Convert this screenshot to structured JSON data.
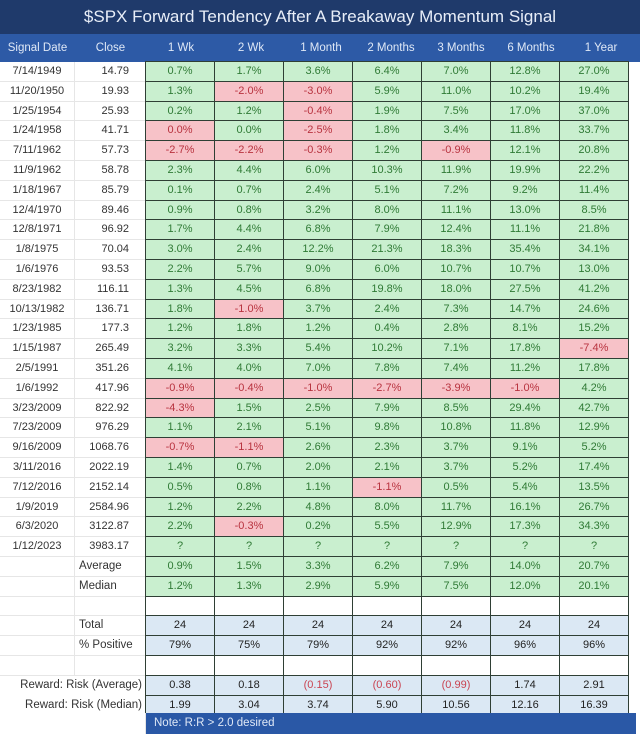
{
  "title": "$SPX Forward Tendency After A Breakaway Momentum Signal",
  "columns": [
    "Signal Date",
    "Close",
    "1 Wk",
    "2 Wk",
    "1 Month",
    "2 Months",
    "3 Months",
    "6 Months",
    "1 Year"
  ],
  "colors": {
    "title_bg": "#1f3a6b",
    "header_bg": "#2d5aa6",
    "positive_bg": "#c9efcf",
    "positive_text": "#2f7a35",
    "negative_bg": "#f7c2c8",
    "negative_text": "#b8333f",
    "summary_bg": "#dbe8f4",
    "note_bg": "#2a58a6"
  },
  "rows": [
    {
      "date": "7/14/1949",
      "close": "14.79",
      "values": [
        "0.7%",
        "1.7%",
        "3.6%",
        "6.4%",
        "7.0%",
        "12.8%",
        "27.0%"
      ]
    },
    {
      "date": "11/20/1950",
      "close": "19.93",
      "values": [
        "1.3%",
        "-2.0%",
        "-3.0%",
        "5.9%",
        "11.0%",
        "10.2%",
        "19.4%"
      ]
    },
    {
      "date": "1/25/1954",
      "close": "25.93",
      "values": [
        "0.2%",
        "1.2%",
        "-0.4%",
        "1.9%",
        "7.5%",
        "17.0%",
        "37.0%"
      ]
    },
    {
      "date": "1/24/1958",
      "close": "41.71",
      "values": [
        "0.0%",
        "0.0%",
        "-2.5%",
        "1.8%",
        "3.4%",
        "11.8%",
        "33.7%"
      ],
      "neg_override": [
        true,
        false,
        true,
        false,
        false,
        false,
        false
      ]
    },
    {
      "date": "7/11/1962",
      "close": "57.73",
      "values": [
        "-2.7%",
        "-2.2%",
        "-0.3%",
        "1.2%",
        "-0.9%",
        "12.1%",
        "20.8%"
      ]
    },
    {
      "date": "11/9/1962",
      "close": "58.78",
      "values": [
        "2.3%",
        "4.4%",
        "6.0%",
        "10.3%",
        "11.9%",
        "19.9%",
        "22.2%"
      ]
    },
    {
      "date": "1/18/1967",
      "close": "85.79",
      "values": [
        "0.1%",
        "0.7%",
        "2.4%",
        "5.1%",
        "7.2%",
        "9.2%",
        "11.4%"
      ]
    },
    {
      "date": "12/4/1970",
      "close": "89.46",
      "values": [
        "0.9%",
        "0.8%",
        "3.2%",
        "8.0%",
        "11.1%",
        "13.0%",
        "8.5%"
      ]
    },
    {
      "date": "12/8/1971",
      "close": "96.92",
      "values": [
        "1.7%",
        "4.4%",
        "6.8%",
        "7.9%",
        "12.4%",
        "11.1%",
        "21.8%"
      ]
    },
    {
      "date": "1/8/1975",
      "close": "70.04",
      "values": [
        "3.0%",
        "2.4%",
        "12.2%",
        "21.3%",
        "18.3%",
        "35.4%",
        "34.1%"
      ]
    },
    {
      "date": "1/6/1976",
      "close": "93.53",
      "values": [
        "2.2%",
        "5.7%",
        "9.0%",
        "6.0%",
        "10.7%",
        "10.7%",
        "13.0%"
      ]
    },
    {
      "date": "8/23/1982",
      "close": "116.11",
      "values": [
        "1.3%",
        "4.5%",
        "6.8%",
        "19.8%",
        "18.0%",
        "27.5%",
        "41.2%"
      ]
    },
    {
      "date": "10/13/1982",
      "close": "136.71",
      "values": [
        "1.8%",
        "-1.0%",
        "3.7%",
        "2.4%",
        "7.3%",
        "14.7%",
        "24.6%"
      ]
    },
    {
      "date": "1/23/1985",
      "close": "177.3",
      "values": [
        "1.2%",
        "1.8%",
        "1.2%",
        "0.4%",
        "2.8%",
        "8.1%",
        "15.2%"
      ]
    },
    {
      "date": "1/15/1987",
      "close": "265.49",
      "values": [
        "3.2%",
        "3.3%",
        "5.4%",
        "10.2%",
        "7.1%",
        "17.8%",
        "-7.4%"
      ]
    },
    {
      "date": "2/5/1991",
      "close": "351.26",
      "values": [
        "4.1%",
        "4.0%",
        "7.0%",
        "7.8%",
        "7.4%",
        "11.2%",
        "17.8%"
      ]
    },
    {
      "date": "1/6/1992",
      "close": "417.96",
      "values": [
        "-0.9%",
        "-0.4%",
        "-1.0%",
        "-2.7%",
        "-3.9%",
        "-1.0%",
        "4.2%"
      ]
    },
    {
      "date": "3/23/2009",
      "close": "822.92",
      "values": [
        "-4.3%",
        "1.5%",
        "2.5%",
        "7.9%",
        "8.5%",
        "29.4%",
        "42.7%"
      ]
    },
    {
      "date": "7/23/2009",
      "close": "976.29",
      "values": [
        "1.1%",
        "2.1%",
        "5.1%",
        "9.8%",
        "10.8%",
        "11.8%",
        "12.9%"
      ]
    },
    {
      "date": "9/16/2009",
      "close": "1068.76",
      "values": [
        "-0.7%",
        "-1.1%",
        "2.6%",
        "2.3%",
        "3.7%",
        "9.1%",
        "5.2%"
      ]
    },
    {
      "date": "3/11/2016",
      "close": "2022.19",
      "values": [
        "1.4%",
        "0.7%",
        "2.0%",
        "2.1%",
        "3.7%",
        "5.2%",
        "17.4%"
      ]
    },
    {
      "date": "7/12/2016",
      "close": "2152.14",
      "values": [
        "0.5%",
        "0.8%",
        "1.1%",
        "-1.1%",
        "0.5%",
        "5.4%",
        "13.5%"
      ]
    },
    {
      "date": "1/9/2019",
      "close": "2584.96",
      "values": [
        "1.2%",
        "2.2%",
        "4.8%",
        "8.0%",
        "11.7%",
        "16.1%",
        "26.7%"
      ]
    },
    {
      "date": "6/3/2020",
      "close": "3122.87",
      "values": [
        "2.2%",
        "-0.3%",
        "0.2%",
        "5.5%",
        "12.9%",
        "17.3%",
        "34.3%"
      ]
    },
    {
      "date": "1/12/2023",
      "close": "3983.17",
      "values": [
        "?",
        "?",
        "?",
        "?",
        "?",
        "?",
        "?"
      ]
    }
  ],
  "stats": {
    "average": {
      "label": "Average",
      "values": [
        "0.9%",
        "1.5%",
        "3.3%",
        "6.2%",
        "7.9%",
        "14.0%",
        "20.7%"
      ]
    },
    "median": {
      "label": "Median",
      "values": [
        "1.2%",
        "1.3%",
        "2.9%",
        "5.9%",
        "7.5%",
        "12.0%",
        "20.1%"
      ]
    },
    "total": {
      "label": "Total",
      "values": [
        "24",
        "24",
        "24",
        "24",
        "24",
        "24",
        "24"
      ]
    },
    "pct_positive": {
      "label": "% Positive",
      "values": [
        "79%",
        "75%",
        "79%",
        "92%",
        "92%",
        "96%",
        "96%"
      ]
    },
    "rr_average": {
      "label": "Reward:  Risk (Average)",
      "values": [
        "0.38",
        "0.18",
        "(0.15)",
        "(0.60)",
        "(0.99)",
        "1.74",
        "2.91"
      ]
    },
    "rr_median": {
      "label": "Reward:  Risk (Median)",
      "values": [
        "1.99",
        "3.04",
        "3.74",
        "5.90",
        "10.56",
        "12.16",
        "16.39"
      ]
    }
  },
  "note": "Note:  R:R > 2.0 desired"
}
